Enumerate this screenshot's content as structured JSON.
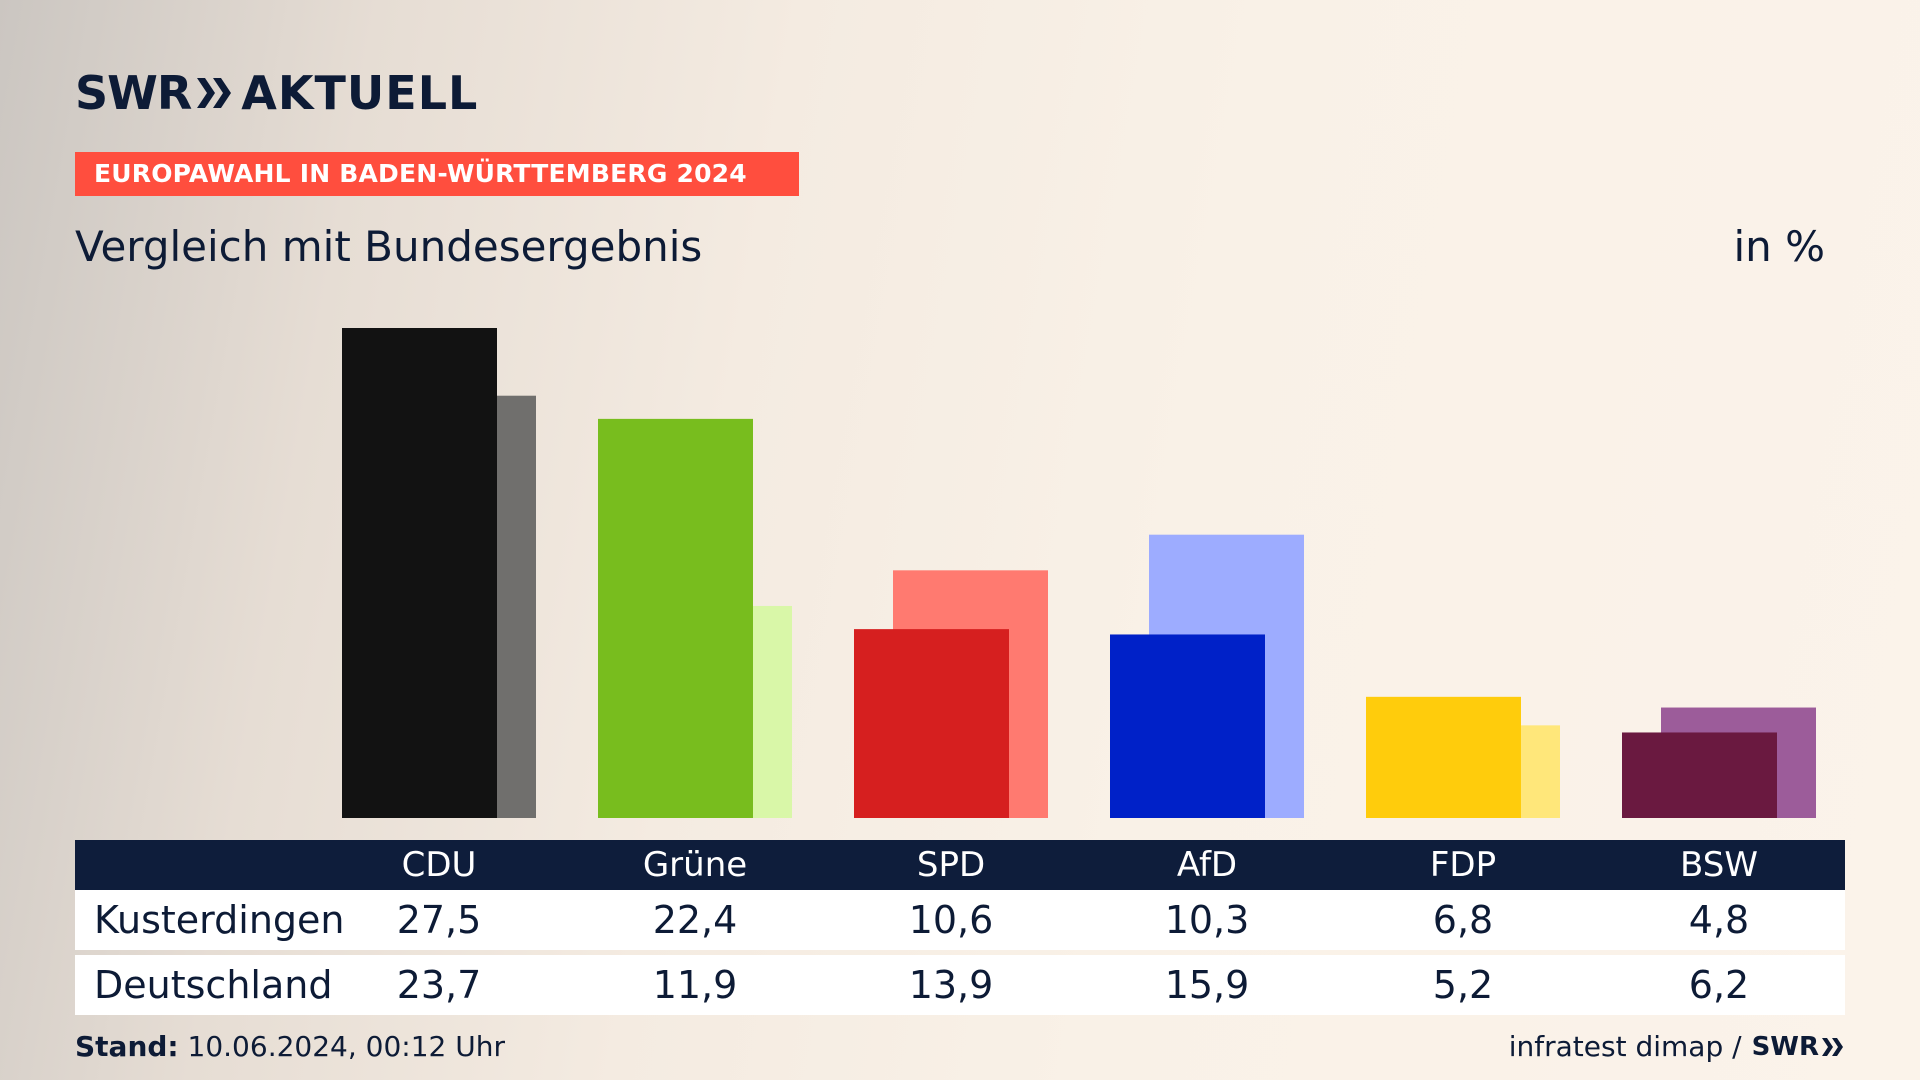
{
  "header": {
    "logo_left": "SWR",
    "logo_right": "AKTUELL",
    "banner": "EUROPAWAHL IN BADEN-WÜRTTEMBERG 2024",
    "subtitle": "Vergleich mit Bundesergebnis",
    "unit": "in %"
  },
  "table": {
    "row1_label": "Kusterdingen",
    "row2_label": "Deutschland"
  },
  "footer": {
    "stand_label": "Stand:",
    "stand_value": "10.06.2024, 00:12 Uhr",
    "source": "infratest dimap /",
    "source_logo": "SWR"
  },
  "chart_data": {
    "type": "bar",
    "categories": [
      "CDU",
      "Grüne",
      "SPD",
      "AfD",
      "FDP",
      "BSW"
    ],
    "series": [
      {
        "name": "Kusterdingen",
        "values": [
          27.5,
          22.4,
          10.6,
          10.3,
          6.8,
          4.8
        ]
      },
      {
        "name": "Deutschland",
        "values": [
          23.7,
          11.9,
          13.9,
          15.9,
          5.2,
          6.2
        ]
      }
    ],
    "colors_primary": [
      "#121212",
      "#78bd1e",
      "#d61f1f",
      "#0021c8",
      "#ffcc0c",
      "#6a1940"
    ],
    "colors_secondary": [
      "#706f6d",
      "#d9f7a8",
      "#ff7a70",
      "#9dacff",
      "#ffe77a",
      "#9c5c9a"
    ],
    "value_labels": [
      [
        "27,5",
        "22,4",
        "10,6",
        "10,3",
        "6,8",
        "4,8"
      ],
      [
        "23,7",
        "11,9",
        "13,9",
        "15,9",
        "5,2",
        "6,2"
      ]
    ],
    "ylim": [
      0,
      27.5
    ],
    "legend": "table-below",
    "grid": false
  }
}
